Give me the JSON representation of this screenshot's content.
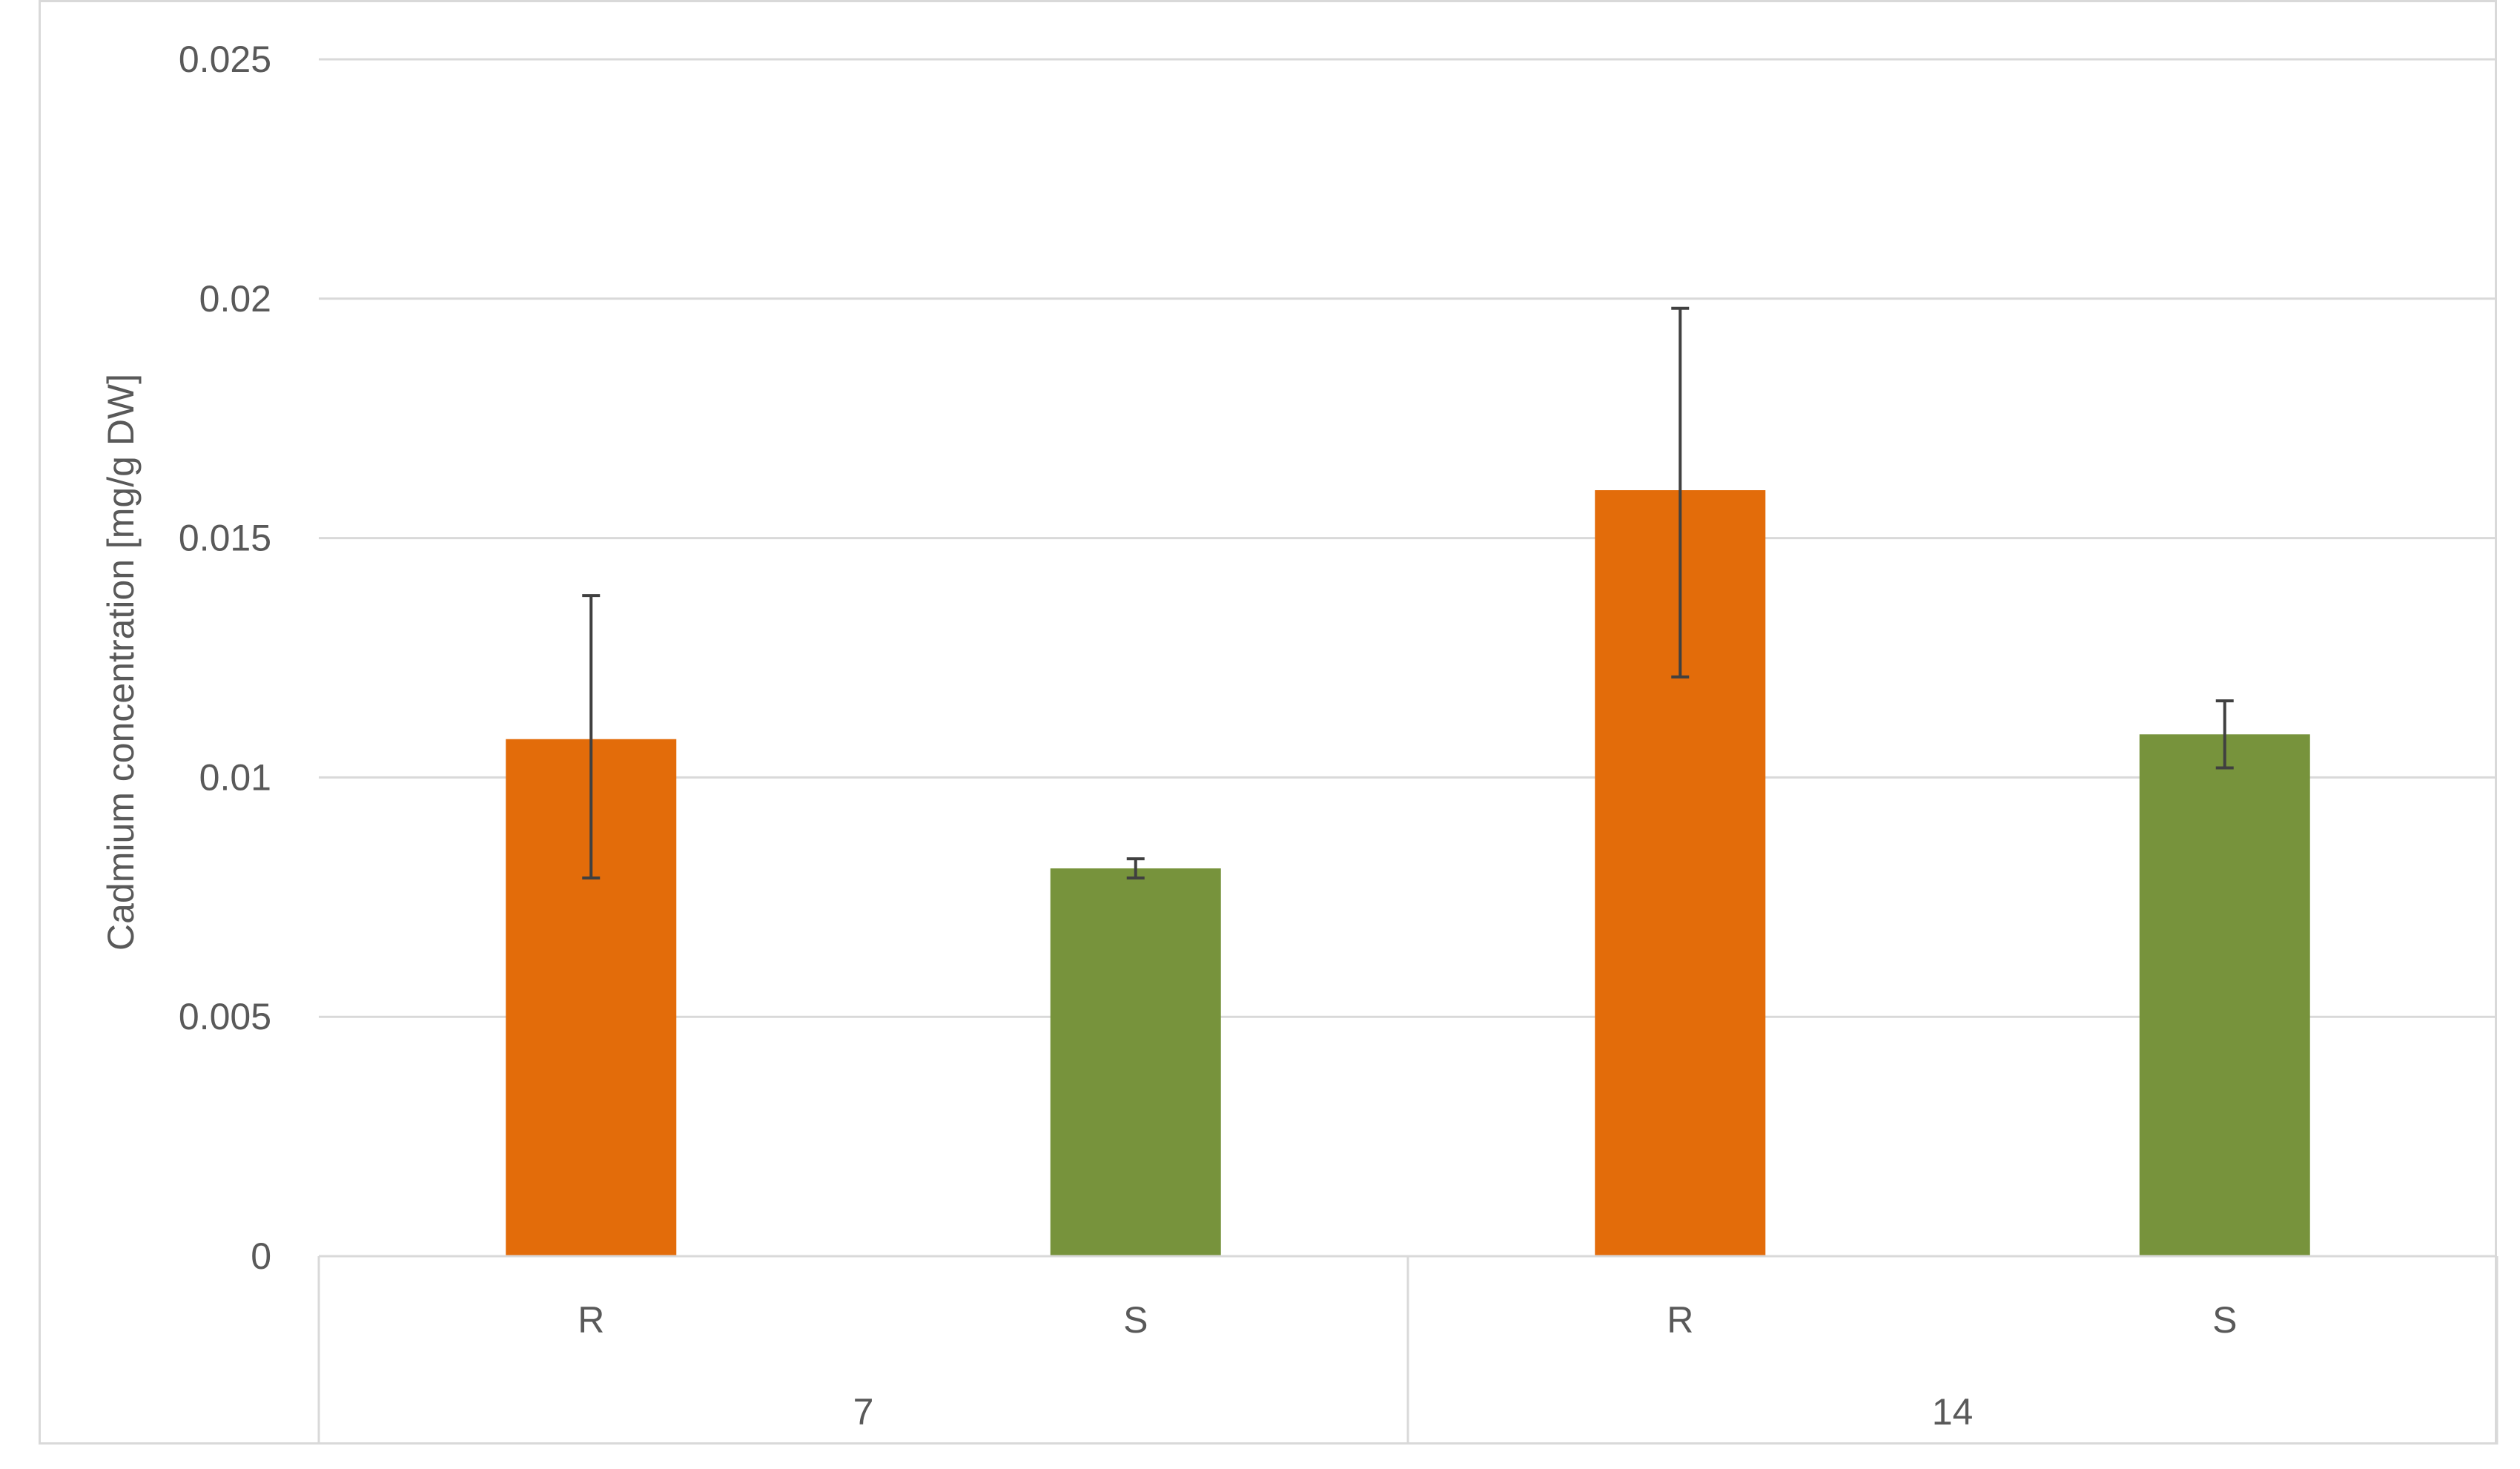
{
  "chart_data": {
    "type": "bar",
    "title": "",
    "xlabel": "",
    "ylabel": "Cadmium concentration [mg/g DW]",
    "ylim": [
      0,
      0.025
    ],
    "yticks": [
      "0",
      "0.005",
      "0.01",
      "0.015",
      "0.02",
      "0.025"
    ],
    "ytick_values": [
      0,
      0.005,
      0.01,
      0.015,
      0.02,
      0.025
    ],
    "groups": [
      {
        "label": "7",
        "categories": [
          "R",
          "S"
        ]
      },
      {
        "label": "14",
        "categories": [
          "R",
          "S"
        ]
      }
    ],
    "bars": [
      {
        "group": "7",
        "category": "R",
        "value": 0.0108,
        "error_low": 0.0079,
        "error_high": 0.0138,
        "color": "#e36c0a"
      },
      {
        "group": "7",
        "category": "S",
        "value": 0.0081,
        "error_low": 0.0079,
        "error_high": 0.0083,
        "color": "#77933c"
      },
      {
        "group": "14",
        "category": "R",
        "value": 0.016,
        "error_low": 0.0121,
        "error_high": 0.0198,
        "color": "#e36c0a"
      },
      {
        "group": "14",
        "category": "S",
        "value": 0.0109,
        "error_low": 0.0102,
        "error_high": 0.0116,
        "color": "#77933c"
      }
    ],
    "grid": true,
    "legend": "none",
    "colors": {
      "gridline": "#d9d9d9",
      "text": "#595959",
      "error_bar": "#404040"
    }
  }
}
